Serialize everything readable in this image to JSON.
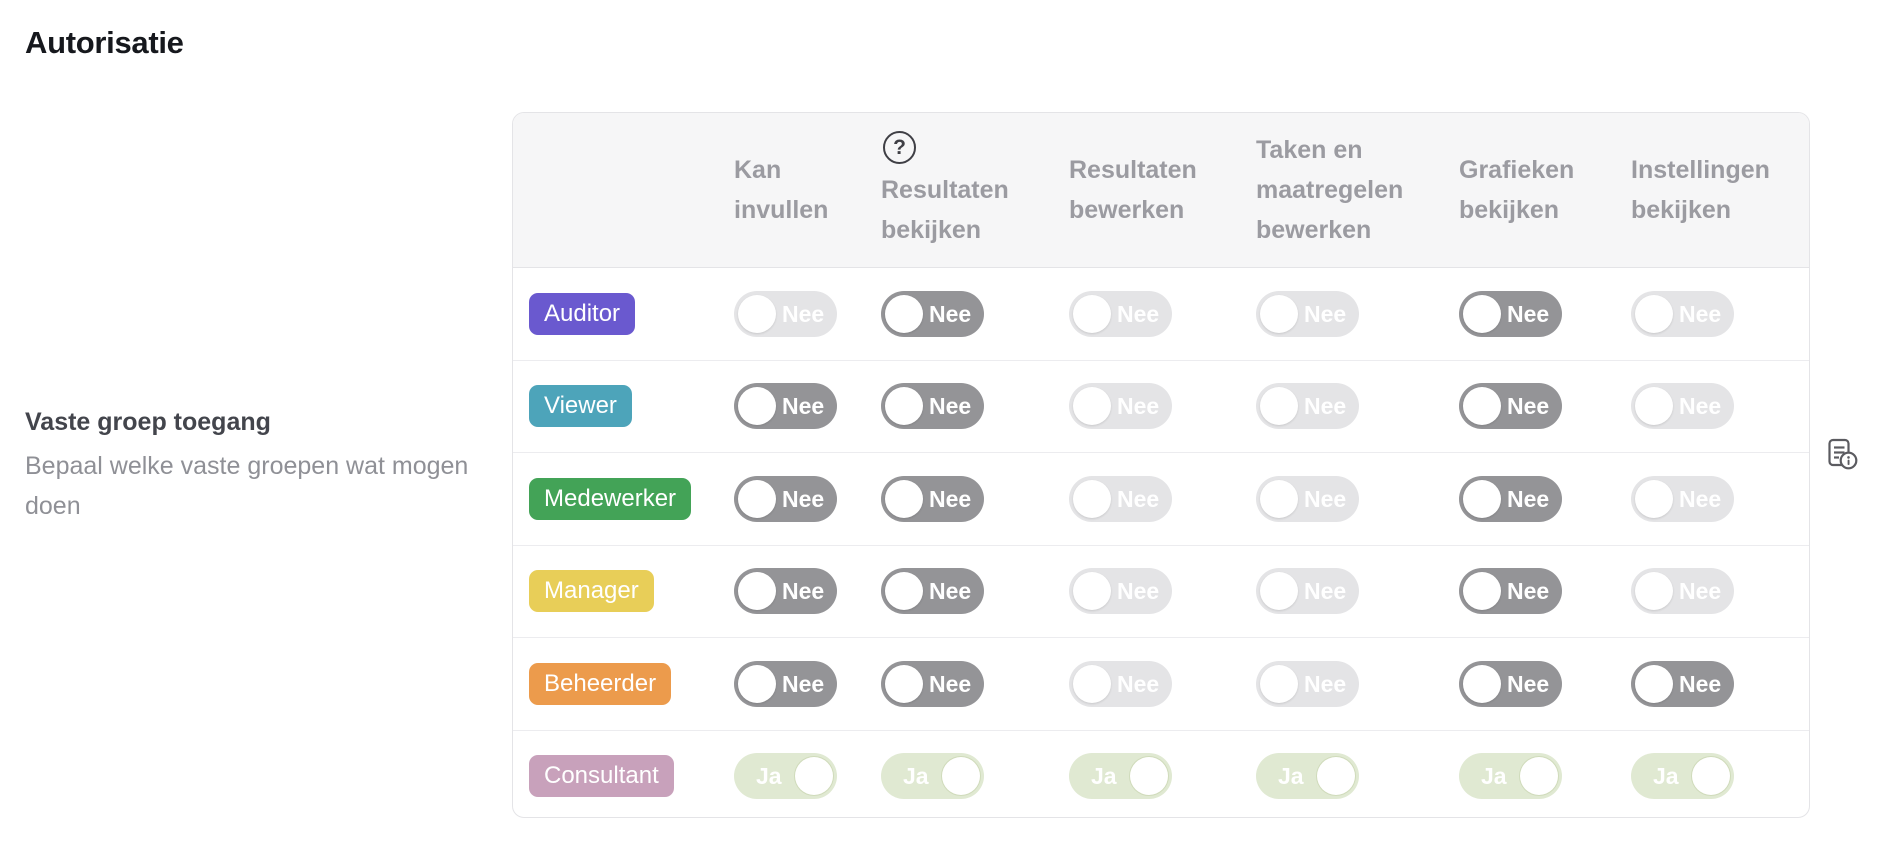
{
  "page": {
    "title": "Autorisatie"
  },
  "sidebar": {
    "heading": "Vaste groep toegang",
    "description": "Bepaal welke vaste groepen wat mogen doen"
  },
  "icons": {
    "help": "?",
    "doc_info": "document-with-info"
  },
  "colors": {
    "toggle_dark": "#949497",
    "toggle_light": "#e4e4e6",
    "toggle_green": "#e0e9d2",
    "header_bg": "#f6f6f7",
    "border": "#e4e4e7"
  },
  "permissions_table": {
    "columns": [
      {
        "label": "Kan invullen",
        "help_icon": false
      },
      {
        "label": "Resultaten bekijken",
        "help_icon": true
      },
      {
        "label": "Resultaten bewerken",
        "help_icon": false
      },
      {
        "label": "Taken en maatregelen bewerken",
        "help_icon": false
      },
      {
        "label": "Grafieken bekijken",
        "help_icon": false
      },
      {
        "label": "Instellingen bekijken",
        "help_icon": false
      }
    ],
    "rows": [
      {
        "role": "Auditor",
        "badge_color": "#6a59cf",
        "toggles": [
          {
            "label": "Nee",
            "on": false,
            "variant": "light",
            "disabled": true
          },
          {
            "label": "Nee",
            "on": false,
            "variant": "dark",
            "disabled": false
          },
          {
            "label": "Nee",
            "on": false,
            "variant": "light",
            "disabled": true
          },
          {
            "label": "Nee",
            "on": false,
            "variant": "light",
            "disabled": true
          },
          {
            "label": "Nee",
            "on": false,
            "variant": "dark",
            "disabled": false
          },
          {
            "label": "Nee",
            "on": false,
            "variant": "light",
            "disabled": true
          }
        ]
      },
      {
        "role": "Viewer",
        "badge_color": "#4da4ba",
        "toggles": [
          {
            "label": "Nee",
            "on": false,
            "variant": "dark",
            "disabled": false
          },
          {
            "label": "Nee",
            "on": false,
            "variant": "dark",
            "disabled": false
          },
          {
            "label": "Nee",
            "on": false,
            "variant": "light",
            "disabled": true
          },
          {
            "label": "Nee",
            "on": false,
            "variant": "light",
            "disabled": true
          },
          {
            "label": "Nee",
            "on": false,
            "variant": "dark",
            "disabled": false
          },
          {
            "label": "Nee",
            "on": false,
            "variant": "light",
            "disabled": true
          }
        ]
      },
      {
        "role": "Medewerker",
        "badge_color": "#43a357",
        "toggles": [
          {
            "label": "Nee",
            "on": false,
            "variant": "dark",
            "disabled": false
          },
          {
            "label": "Nee",
            "on": false,
            "variant": "dark",
            "disabled": false
          },
          {
            "label": "Nee",
            "on": false,
            "variant": "light",
            "disabled": true
          },
          {
            "label": "Nee",
            "on": false,
            "variant": "light",
            "disabled": true
          },
          {
            "label": "Nee",
            "on": false,
            "variant": "dark",
            "disabled": false
          },
          {
            "label": "Nee",
            "on": false,
            "variant": "light",
            "disabled": true
          }
        ]
      },
      {
        "role": "Manager",
        "badge_color": "#e8ce58",
        "toggles": [
          {
            "label": "Nee",
            "on": false,
            "variant": "dark",
            "disabled": false
          },
          {
            "label": "Nee",
            "on": false,
            "variant": "dark",
            "disabled": false
          },
          {
            "label": "Nee",
            "on": false,
            "variant": "light",
            "disabled": true
          },
          {
            "label": "Nee",
            "on": false,
            "variant": "light",
            "disabled": true
          },
          {
            "label": "Nee",
            "on": false,
            "variant": "dark",
            "disabled": false
          },
          {
            "label": "Nee",
            "on": false,
            "variant": "light",
            "disabled": true
          }
        ]
      },
      {
        "role": "Beheerder",
        "badge_color": "#ec9b4c",
        "toggles": [
          {
            "label": "Nee",
            "on": false,
            "variant": "dark",
            "disabled": false
          },
          {
            "label": "Nee",
            "on": false,
            "variant": "dark",
            "disabled": false
          },
          {
            "label": "Nee",
            "on": false,
            "variant": "light",
            "disabled": true
          },
          {
            "label": "Nee",
            "on": false,
            "variant": "light",
            "disabled": true
          },
          {
            "label": "Nee",
            "on": false,
            "variant": "dark",
            "disabled": false
          },
          {
            "label": "Nee",
            "on": false,
            "variant": "dark",
            "disabled": false
          }
        ]
      },
      {
        "role": "Consultant",
        "badge_color": "#c8a1bb",
        "toggles": [
          {
            "label": "Ja",
            "on": true,
            "variant": "green",
            "disabled": true
          },
          {
            "label": "Ja",
            "on": true,
            "variant": "green",
            "disabled": true
          },
          {
            "label": "Ja",
            "on": true,
            "variant": "green",
            "disabled": true
          },
          {
            "label": "Ja",
            "on": true,
            "variant": "green",
            "disabled": true
          },
          {
            "label": "Ja",
            "on": true,
            "variant": "green",
            "disabled": true
          },
          {
            "label": "Ja",
            "on": true,
            "variant": "green",
            "disabled": true
          }
        ]
      }
    ]
  }
}
